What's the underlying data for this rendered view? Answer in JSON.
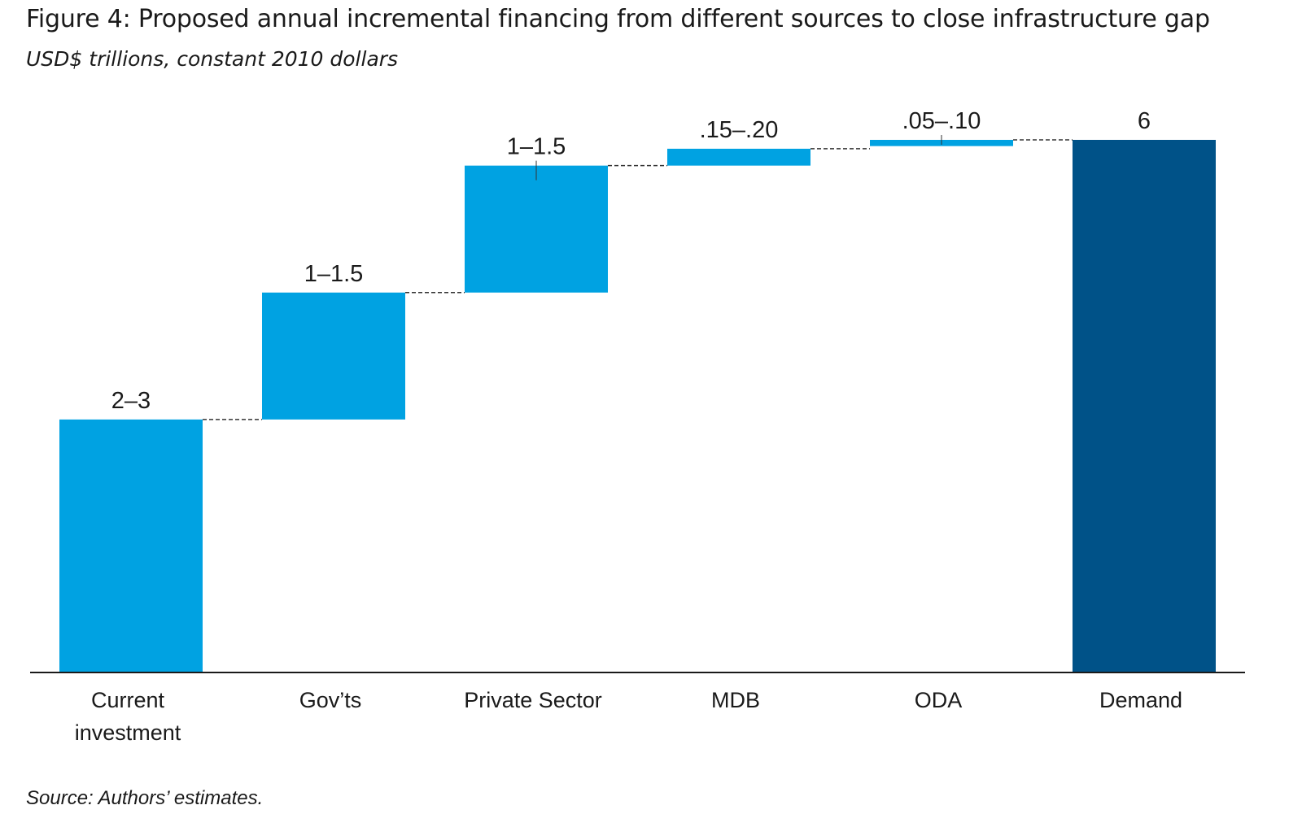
{
  "title": "Figure 4: Proposed annual incremental financing from different sources to close infrastructure gap",
  "subtitle": "USD$ trillions, constant 2010 dollars",
  "source": "Source: Authors’ estimates.",
  "colors": {
    "contribution": "#00A2E2",
    "total": "#005288",
    "axis": "#1a1a1a",
    "connector": "#333333"
  },
  "chart_data": {
    "type": "bar",
    "subtype": "waterfall",
    "ylim": [
      0,
      6
    ],
    "grid": false,
    "categories": [
      "Current\ninvestment",
      "Gov’ts",
      "Private Sector",
      "MDB",
      "ODA",
      "Demand"
    ],
    "value_labels": [
      "2–3",
      "1–1.5",
      "1–1.5",
      ".15–.20",
      ".05–.10",
      "6"
    ],
    "series": [
      {
        "bars": [
          {
            "base": 0,
            "top": 2.85,
            "kind": "contribution"
          },
          {
            "base": 2.85,
            "top": 4.28,
            "kind": "contribution"
          },
          {
            "base": 4.28,
            "top": 5.71,
            "kind": "contribution"
          },
          {
            "base": 5.71,
            "top": 5.9,
            "kind": "contribution"
          },
          {
            "base": 5.93,
            "top": 6.0,
            "kind": "contribution"
          },
          {
            "base": 0,
            "top": 6.0,
            "kind": "total"
          }
        ]
      }
    ]
  }
}
